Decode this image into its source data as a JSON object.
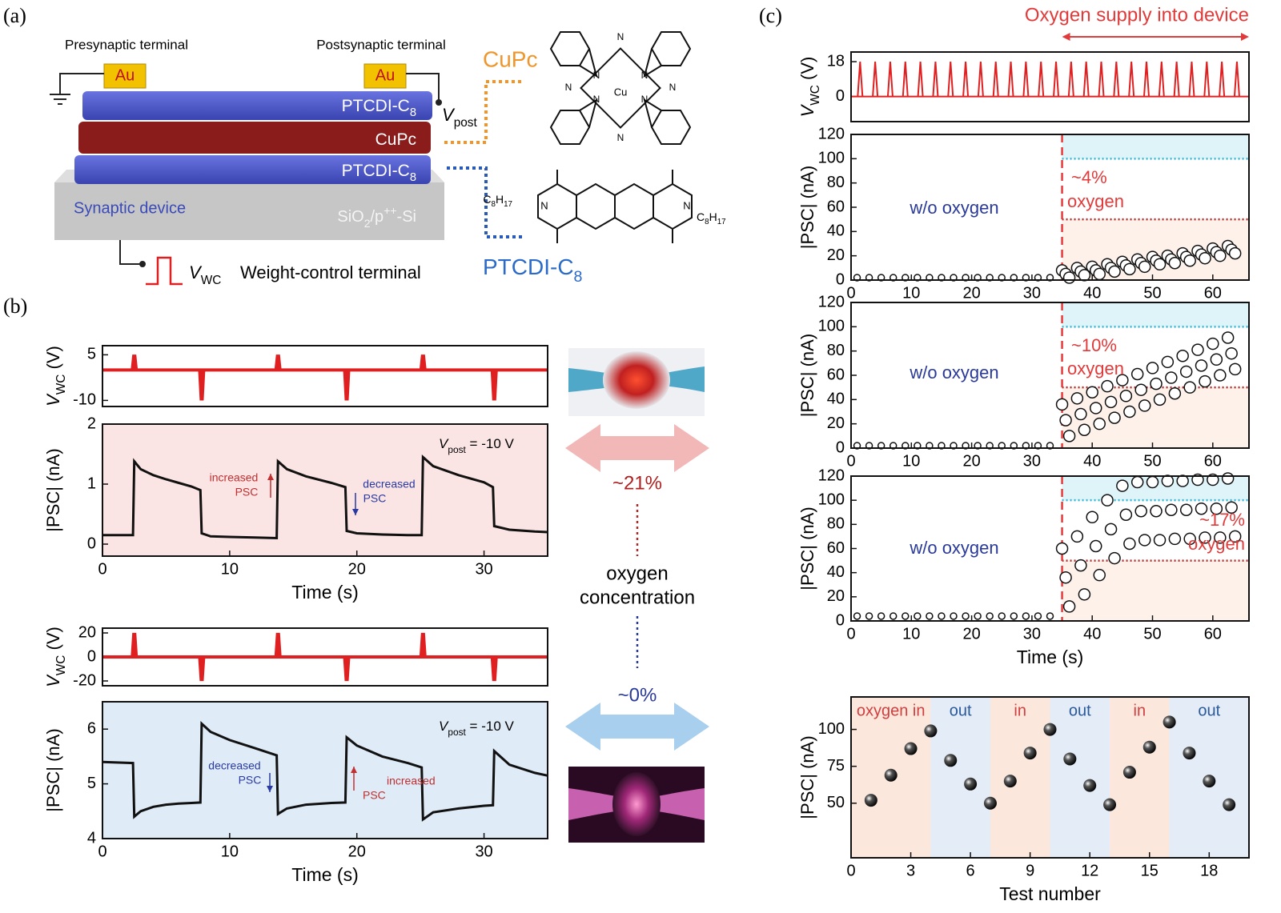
{
  "diagram": {
    "panel": "(a)",
    "presynaptic": "Presynaptic terminal",
    "postsynaptic": "Postsynaptic terminal",
    "electrodes": [
      "Au",
      "Au"
    ],
    "layers": [
      {
        "text": "PTCDI-C",
        "sub": "8"
      },
      {
        "text": "CuPc"
      },
      {
        "text": "PTCDI-C",
        "sub": "8"
      }
    ],
    "substrate_label": "Synaptic device",
    "substrate": {
      "a": "SiO",
      "b": "2",
      "c": "/p",
      "d": "++",
      "e": "-Si"
    },
    "v_post": {
      "symbol": "V",
      "sub": "post"
    },
    "v_wc": {
      "symbol": "V",
      "sub": "WC"
    },
    "wc_terminal": "Weight-control terminal",
    "cupc": {
      "name": "CuPc",
      "metal": "Cu",
      "atoms": [
        "N",
        "N",
        "N",
        "N",
        "N",
        "N",
        "N",
        "N"
      ]
    },
    "ptcdi": {
      "name": "PTCDI-C",
      "sub": "8",
      "atoms": [
        "N",
        "N"
      ],
      "chains": [
        {
          "c": "C",
          "n1": "8",
          "h": "H",
          "n2": "17"
        },
        {
          "c": "C",
          "n1": "8",
          "h": "H",
          "n2": "17"
        }
      ]
    }
  },
  "panel_b": {
    "panel": "(b)",
    "high": "~21%",
    "low": "~0%",
    "concentration": [
      "oxygen",
      "concentration"
    ]
  },
  "panel_c": {
    "panel": "(c)"
  },
  "chart_data": [
    {
      "type": "pulse",
      "color": "#e02020",
      "xlim": [
        0,
        35
      ],
      "ylim": [
        -12,
        8
      ],
      "yticks": [
        5,
        -10
      ],
      "ylabel": {
        "symbol": "V",
        "sub": "WC",
        "rest": " (V)"
      },
      "x": [
        2.5,
        7.8,
        13.8,
        19.2,
        25.2,
        30.8
      ],
      "values": [
        5,
        -10,
        5,
        -10,
        5,
        -10
      ]
    },
    {
      "type": "line",
      "color": "#111111",
      "background": "#fbe4e4",
      "xlim": [
        0,
        35
      ],
      "ylim": [
        -0.2,
        2
      ],
      "xticks": [
        0,
        10,
        20,
        30
      ],
      "yticks": [
        0,
        1,
        2
      ],
      "xlabel": "Time (s)",
      "ylabel": {
        "symbol": "|PSC|",
        "sub": "",
        "rest": " (nA)"
      },
      "vpost": {
        "symbol": "V",
        "sub": "post",
        "rest": " = -10 V"
      },
      "annotations": [
        "increased",
        "PSC",
        "decreased",
        "PSC"
      ],
      "x": [
        0,
        2.4,
        2.5,
        3,
        4,
        5,
        6,
        7,
        7.7,
        7.8,
        8.5,
        10,
        12,
        13.7,
        13.8,
        14.5,
        16,
        18,
        19.1,
        19.2,
        20,
        22,
        24,
        25.1,
        25.2,
        26,
        28,
        30,
        30.7,
        30.8,
        32,
        34,
        35
      ],
      "values": [
        0.15,
        0.15,
        1.38,
        1.25,
        1.15,
        1.08,
        1.02,
        0.96,
        0.9,
        0.18,
        0.13,
        0.12,
        0.11,
        0.1,
        1.38,
        1.25,
        1.13,
        1.02,
        0.95,
        0.22,
        0.18,
        0.16,
        0.15,
        0.15,
        1.45,
        1.3,
        1.15,
        1.03,
        0.95,
        0.3,
        0.24,
        0.21,
        0.2
      ]
    },
    {
      "type": "pulse",
      "color": "#e02020",
      "xlim": [
        0,
        35
      ],
      "ylim": [
        -24,
        24
      ],
      "yticks": [
        20,
        0,
        -20
      ],
      "ylabel": {
        "symbol": "V",
        "sub": "WC",
        "rest": " (V)"
      },
      "x": [
        2.5,
        7.8,
        13.8,
        19.2,
        25.2,
        30.8
      ],
      "values": [
        20,
        -20,
        20,
        -20,
        20,
        -20
      ]
    },
    {
      "type": "line",
      "color": "#111111",
      "background": "#dfebf7",
      "xlim": [
        0,
        35
      ],
      "ylim": [
        4,
        6.5
      ],
      "xticks": [
        0,
        10,
        20,
        30
      ],
      "yticks": [
        4,
        5,
        6
      ],
      "xlabel": "Time (s)",
      "ylabel": {
        "symbol": "|PSC|",
        "sub": "",
        "rest": " (nA)"
      },
      "vpost": {
        "symbol": "V",
        "sub": "post",
        "rest": " = -10 V"
      },
      "annotations": [
        "decreased",
        "PSC",
        "increased",
        "PSC"
      ],
      "x": [
        0,
        2.4,
        2.5,
        3,
        4,
        5,
        6,
        7,
        7.7,
        7.8,
        8.5,
        10,
        12,
        13.7,
        13.8,
        14.5,
        16,
        18,
        19.1,
        19.2,
        20,
        22,
        24,
        25.1,
        25.2,
        26,
        28,
        30,
        30.7,
        30.8,
        32,
        34,
        35
      ],
      "values": [
        5.4,
        5.38,
        4.4,
        4.5,
        4.58,
        4.62,
        4.64,
        4.65,
        4.66,
        6.1,
        5.95,
        5.8,
        5.65,
        5.52,
        4.45,
        4.55,
        4.62,
        4.65,
        4.66,
        5.85,
        5.7,
        5.5,
        5.38,
        5.3,
        4.35,
        4.48,
        4.55,
        4.6,
        4.61,
        5.6,
        5.35,
        5.2,
        5.15
      ]
    },
    {
      "type": "pulse",
      "color": "#e02020",
      "xlim": [
        0,
        66
      ],
      "ylim": [
        -13,
        23
      ],
      "yticks": [
        0,
        18
      ],
      "ylabel": {
        "symbol": "V",
        "sub": "WC",
        "rest": " (V)"
      },
      "annotations": [
        "Oxygen supply into device"
      ],
      "supply": [
        35,
        66
      ],
      "x": [
        1.5,
        4,
        6.5,
        9,
        11.5,
        14,
        16.5,
        19,
        21.5,
        24,
        26.5,
        29,
        31.5,
        34,
        36.5,
        39,
        41.5,
        44,
        46.5,
        49,
        51.5,
        54,
        56.5,
        59,
        61.5,
        64
      ],
      "values": [
        18,
        18,
        18,
        18,
        18,
        18,
        18,
        18,
        18,
        18,
        18,
        18,
        18,
        18,
        18,
        18,
        18,
        18,
        18,
        18,
        18,
        18,
        18,
        18,
        18,
        18
      ]
    },
    {
      "type": "scatter",
      "xlim": [
        0,
        66
      ],
      "ylim": [
        0,
        120
      ],
      "xticks": [
        0,
        10,
        20,
        30,
        40,
        50,
        60
      ],
      "yticks": [
        0,
        20,
        40,
        60,
        80,
        100,
        120
      ],
      "ylabel": {
        "symbol": "|PSC|",
        "sub": "",
        "rest": " (nA)"
      },
      "vline": 35,
      "hlines": [
        {
          "value": 100,
          "color": "#2ab6d8"
        },
        {
          "value": 50,
          "color": "#b02a2a"
        }
      ],
      "annotations": [
        "w/o oxygen",
        "~4%",
        "oxygen"
      ],
      "x": [
        1,
        3,
        5,
        7,
        9,
        11,
        13,
        15,
        17,
        19,
        21,
        23,
        25,
        27,
        29,
        31,
        33,
        35,
        35.6,
        36.2,
        37.5,
        38.1,
        38.7,
        40,
        40.6,
        41.2,
        42.5,
        43.1,
        43.7,
        45,
        45.6,
        46.2,
        47.5,
        48.1,
        48.7,
        50,
        50.6,
        51.2,
        52.5,
        53.1,
        53.7,
        55,
        55.6,
        56.2,
        57.5,
        58.1,
        58.7,
        60,
        60.6,
        61.2,
        62.5,
        63.1,
        63.7
      ],
      "values": [
        2,
        2,
        2,
        2,
        2,
        2,
        2,
        2,
        2,
        2,
        2,
        2,
        2,
        2,
        2,
        2,
        2,
        8,
        5,
        2,
        10,
        7,
        4,
        11,
        8,
        5,
        13,
        10,
        7,
        15,
        12,
        9,
        17,
        14,
        11,
        19,
        16,
        13,
        20,
        17,
        14,
        22,
        19,
        16,
        24,
        21,
        18,
        26,
        23,
        20,
        28,
        25,
        22
      ]
    },
    {
      "type": "scatter",
      "xlim": [
        0,
        66
      ],
      "ylim": [
        0,
        120
      ],
      "xticks": [
        0,
        10,
        20,
        30,
        40,
        50,
        60
      ],
      "yticks": [
        0,
        20,
        40,
        60,
        80,
        100,
        120
      ],
      "ylabel": {
        "symbol": "|PSC|",
        "sub": "",
        "rest": " (nA)"
      },
      "vline": 35,
      "hlines": [
        {
          "value": 100,
          "color": "#2ab6d8"
        },
        {
          "value": 50,
          "color": "#b02a2a"
        }
      ],
      "annotations": [
        "w/o oxygen",
        "~10%",
        "oxygen"
      ],
      "x": [
        1,
        3,
        5,
        7,
        9,
        11,
        13,
        15,
        17,
        19,
        21,
        23,
        25,
        27,
        29,
        31,
        33,
        35,
        35.6,
        36.2,
        37.5,
        38.1,
        38.7,
        40,
        40.6,
        41.2,
        42.5,
        43.1,
        43.7,
        45,
        45.6,
        46.2,
        47.5,
        48.1,
        48.7,
        50,
        50.6,
        51.2,
        52.5,
        53.1,
        53.7,
        55,
        55.6,
        56.2,
        57.5,
        58.1,
        58.7,
        60,
        60.6,
        61.2,
        62.5,
        63.1,
        63.7
      ],
      "values": [
        2,
        2,
        2,
        2,
        2,
        2,
        2,
        2,
        2,
        2,
        2,
        2,
        2,
        2,
        2,
        2,
        2,
        36,
        23,
        10,
        41,
        28,
        15,
        46,
        33,
        20,
        51,
        38,
        25,
        56,
        43,
        30,
        61,
        48,
        35,
        66,
        53,
        40,
        71,
        58,
        45,
        76,
        63,
        50,
        81,
        68,
        55,
        86,
        73,
        60,
        91,
        78,
        65
      ]
    },
    {
      "type": "scatter",
      "xlim": [
        0,
        66
      ],
      "ylim": [
        0,
        120
      ],
      "xticks": [
        0,
        10,
        20,
        30,
        40,
        50,
        60
      ],
      "yticks": [
        0,
        20,
        40,
        60,
        80,
        100,
        120
      ],
      "xlabel": "Time (s)",
      "ylabel": {
        "symbol": "|PSC|",
        "sub": "",
        "rest": " (nA)"
      },
      "vline": 35,
      "hlines": [
        {
          "value": 100,
          "color": "#2ab6d8"
        },
        {
          "value": 50,
          "color": "#b02a2a"
        }
      ],
      "annotations": [
        "w/o oxygen",
        "~17%",
        "oxygen"
      ],
      "x": [
        1,
        3,
        5,
        7,
        9,
        11,
        13,
        15,
        17,
        19,
        21,
        23,
        25,
        27,
        29,
        31,
        33,
        35,
        35.6,
        36.2,
        37.5,
        38.1,
        38.7,
        40,
        40.6,
        41.2,
        42.5,
        43.1,
        43.7,
        45,
        45.6,
        46.2,
        47.5,
        48.1,
        48.7,
        50,
        50.6,
        51.2,
        52.5,
        53.1,
        53.7,
        55,
        55.6,
        56.2,
        57.5,
        58.1,
        58.7,
        60,
        60.6,
        61.2,
        62.5,
        63.1,
        63.7
      ],
      "values": [
        4,
        4,
        4,
        4,
        4,
        4,
        4,
        4,
        4,
        4,
        4,
        4,
        4,
        4,
        4,
        4,
        4,
        60,
        36,
        12,
        70,
        46,
        22,
        86,
        62,
        38,
        100,
        76,
        52,
        112,
        88,
        64,
        115,
        91,
        67,
        115,
        91,
        67,
        116,
        92,
        68,
        116,
        92,
        68,
        117,
        93,
        69,
        117,
        93,
        69,
        118,
        94,
        70
      ]
    },
    {
      "type": "balls",
      "xlim": [
        0,
        20
      ],
      "ylim": [
        13,
        122
      ],
      "xticks": [
        0,
        3,
        6,
        9,
        12,
        15,
        18
      ],
      "yticks": [
        50,
        75,
        100
      ],
      "xlabel": "Test number",
      "ylabel": {
        "symbol": "|PSC|",
        "sub": "",
        "rest": " (nA)"
      },
      "regions": [
        {
          "from": 0,
          "to": 4,
          "label": "oxygen in",
          "color": "#fbe7dc"
        },
        {
          "from": 4,
          "to": 7,
          "label": "out",
          "color": "#e3ecf7"
        },
        {
          "from": 7,
          "to": 10,
          "label": "in",
          "color": "#fbe7dc"
        },
        {
          "from": 10,
          "to": 13,
          "label": "out",
          "color": "#e3ecf7"
        },
        {
          "from": 13,
          "to": 16,
          "label": "in",
          "color": "#fbe7dc"
        },
        {
          "from": 16,
          "to": 20,
          "label": "out",
          "color": "#e3ecf7"
        }
      ],
      "x": [
        1,
        2,
        3,
        4,
        5,
        6,
        7,
        8,
        9,
        10,
        11,
        12,
        13,
        14,
        15,
        16,
        17,
        18,
        19
      ],
      "values": [
        52,
        69,
        87,
        99,
        79,
        63,
        50,
        65,
        84,
        100,
        80,
        62,
        49,
        71,
        88,
        105,
        84,
        65,
        49
      ]
    }
  ]
}
